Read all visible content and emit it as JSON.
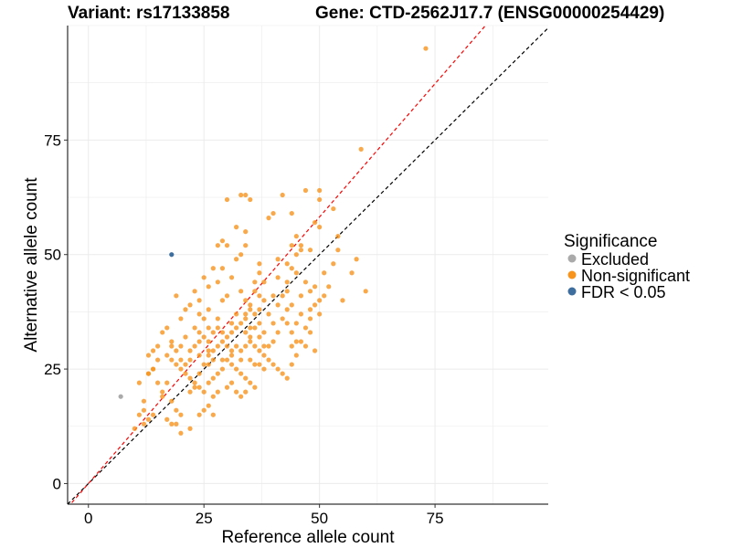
{
  "header": {
    "variant": "Variant: rs17133858",
    "gene": "Gene: CTD-2562J17.7 (ENSG00000254429)"
  },
  "colors": {
    "excluded": "#aaaaaa",
    "non_significant": "#f7941d",
    "fdr": "#3e6e9e",
    "diag_red": "#ff0000",
    "diag_black": "#000000",
    "grid": "#ebebeb"
  },
  "chart_data": {
    "type": "scatter",
    "xlabel": "Reference allele count",
    "ylabel": "Alternative allele count",
    "xlim": [
      -4.5,
      99.5
    ],
    "ylim": [
      -4.5,
      100
    ],
    "xticks": [
      0,
      25,
      50,
      75
    ],
    "yticks": [
      0,
      25,
      50,
      75
    ],
    "grid": true,
    "legend": {
      "title": "Significance",
      "position": "right",
      "entries": [
        "Excluded",
        "Non-significant",
        "FDR < 0.05"
      ]
    },
    "reference_lines": [
      {
        "color": "black",
        "style": "dashed",
        "slope": 1.0,
        "intercept": 0
      },
      {
        "color": "red",
        "style": "dashed",
        "slope": 1.164,
        "intercept": 0
      }
    ],
    "series": [
      {
        "name": "Excluded",
        "points": [
          [
            7,
            19
          ]
        ]
      },
      {
        "name": "FDR < 0.05",
        "points": [
          [
            18,
            50
          ]
        ]
      },
      {
        "name": "Non-significant",
        "points": [
          [
            73,
            95
          ],
          [
            59,
            73
          ],
          [
            60,
            42
          ],
          [
            57,
            46
          ],
          [
            58,
            49
          ],
          [
            55,
            40
          ],
          [
            54,
            54
          ],
          [
            53,
            60
          ],
          [
            50,
            64
          ],
          [
            47,
            64
          ],
          [
            50,
            62
          ],
          [
            42,
            63
          ],
          [
            33,
            63
          ],
          [
            34,
            63
          ],
          [
            30,
            62
          ],
          [
            35,
            62
          ],
          [
            40,
            59
          ],
          [
            39,
            58
          ],
          [
            44,
            59
          ],
          [
            32,
            56
          ],
          [
            50,
            56
          ],
          [
            49,
            57
          ],
          [
            54,
            51
          ],
          [
            53,
            48
          ],
          [
            48,
            51
          ],
          [
            51,
            46
          ],
          [
            45,
            46
          ],
          [
            44,
            47
          ],
          [
            37,
            48
          ],
          [
            34,
            52
          ],
          [
            29,
            53
          ],
          [
            34,
            55
          ],
          [
            30,
            52
          ],
          [
            28,
            52
          ],
          [
            33,
            50
          ],
          [
            32,
            49
          ],
          [
            27,
            47
          ],
          [
            29,
            47
          ],
          [
            37,
            46
          ],
          [
            41,
            45
          ],
          [
            43,
            44
          ],
          [
            47,
            44
          ],
          [
            49,
            43
          ],
          [
            50,
            40
          ],
          [
            50,
            37
          ],
          [
            48,
            33
          ],
          [
            44,
            30
          ],
          [
            45,
            35
          ],
          [
            43,
            38
          ],
          [
            42,
            41
          ],
          [
            43,
            42
          ],
          [
            38,
            44
          ],
          [
            36,
            44
          ],
          [
            31,
            45
          ],
          [
            28,
            44
          ],
          [
            25,
            45
          ],
          [
            26,
            43
          ],
          [
            23,
            42
          ],
          [
            19,
            41
          ],
          [
            22,
            39
          ],
          [
            20,
            36
          ],
          [
            24,
            37
          ],
          [
            26,
            38
          ],
          [
            29,
            40
          ],
          [
            30,
            41
          ],
          [
            33,
            42
          ],
          [
            34,
            40
          ],
          [
            35,
            39
          ],
          [
            37,
            38
          ],
          [
            39,
            37
          ],
          [
            36,
            37
          ],
          [
            32,
            37
          ],
          [
            34,
            36
          ],
          [
            31,
            35
          ],
          [
            28,
            36
          ],
          [
            26,
            34
          ],
          [
            25,
            36
          ],
          [
            23,
            34
          ],
          [
            21,
            32
          ],
          [
            24,
            31
          ],
          [
            22,
            29
          ],
          [
            20,
            30
          ],
          [
            18,
            31
          ],
          [
            17,
            28
          ],
          [
            15,
            27
          ],
          [
            14,
            25
          ],
          [
            13,
            24
          ],
          [
            15,
            22
          ],
          [
            16,
            20
          ],
          [
            18,
            18
          ],
          [
            19,
            16
          ],
          [
            20,
            15
          ],
          [
            17,
            14
          ],
          [
            14,
            15
          ],
          [
            13,
            14
          ],
          [
            12,
            13
          ],
          [
            11,
            15
          ],
          [
            11,
            22
          ],
          [
            13,
            24
          ],
          [
            14,
            25
          ],
          [
            18,
            27
          ],
          [
            19,
            26
          ],
          [
            20,
            25
          ],
          [
            21,
            24
          ],
          [
            22,
            23
          ],
          [
            23,
            22
          ],
          [
            24,
            21
          ],
          [
            25,
            20
          ],
          [
            26,
            22
          ],
          [
            27,
            23
          ],
          [
            28,
            24
          ],
          [
            29,
            25
          ],
          [
            30,
            27
          ],
          [
            31,
            26
          ],
          [
            32,
            25
          ],
          [
            33,
            24
          ],
          [
            34,
            23
          ],
          [
            35,
            22
          ],
          [
            36,
            21
          ],
          [
            34,
            20
          ],
          [
            33,
            19
          ],
          [
            32,
            20
          ],
          [
            31,
            22
          ],
          [
            30,
            21
          ],
          [
            28,
            20
          ],
          [
            27,
            19
          ],
          [
            26,
            17
          ],
          [
            25,
            16
          ],
          [
            24,
            15
          ],
          [
            22,
            12
          ],
          [
            20,
            11
          ],
          [
            19,
            13
          ],
          [
            18,
            13
          ],
          [
            27,
            15
          ],
          [
            24,
            24
          ],
          [
            25,
            26
          ],
          [
            26,
            28
          ],
          [
            27,
            29
          ],
          [
            28,
            30
          ],
          [
            29,
            31
          ],
          [
            30,
            32
          ],
          [
            31,
            33
          ],
          [
            32,
            34
          ],
          [
            33,
            35
          ],
          [
            34,
            33
          ],
          [
            35,
            32
          ],
          [
            36,
            30
          ],
          [
            37,
            29
          ],
          [
            38,
            28
          ],
          [
            39,
            27
          ],
          [
            40,
            26
          ],
          [
            41,
            25
          ],
          [
            42,
            24
          ],
          [
            43,
            23
          ],
          [
            44,
            26
          ],
          [
            45,
            28
          ],
          [
            46,
            31
          ],
          [
            47,
            34
          ],
          [
            48,
            36
          ],
          [
            49,
            29
          ],
          [
            47,
            30
          ],
          [
            45,
            31
          ],
          [
            41,
            33
          ],
          [
            40,
            35
          ],
          [
            39,
            30
          ],
          [
            38,
            33
          ],
          [
            37,
            35
          ],
          [
            36,
            34
          ],
          [
            35,
            31
          ],
          [
            34,
            30
          ],
          [
            33,
            29
          ],
          [
            32,
            30
          ],
          [
            31,
            29
          ],
          [
            30,
            30
          ],
          [
            29,
            33
          ],
          [
            28,
            34
          ],
          [
            27,
            33
          ],
          [
            26,
            31
          ],
          [
            25,
            32
          ],
          [
            24,
            33
          ],
          [
            23,
            30
          ],
          [
            22,
            27
          ],
          [
            21,
            26
          ],
          [
            20,
            27
          ],
          [
            19,
            29
          ],
          [
            18,
            30
          ],
          [
            17,
            34
          ],
          [
            16,
            33
          ],
          [
            15,
            30
          ],
          [
            14,
            29
          ],
          [
            13,
            28
          ],
          [
            12,
            18
          ],
          [
            10,
            12
          ],
          [
            12,
            16
          ],
          [
            16,
            19
          ],
          [
            17,
            22
          ],
          [
            22,
            20
          ],
          [
            23,
            21
          ],
          [
            26,
            26
          ],
          [
            27,
            27
          ],
          [
            36,
            26
          ],
          [
            37,
            26
          ],
          [
            38,
            25
          ],
          [
            35,
            27
          ],
          [
            43,
            35
          ],
          [
            44,
            39
          ],
          [
            46,
            41
          ],
          [
            48,
            42
          ],
          [
            43,
            48
          ],
          [
            45,
            50
          ],
          [
            46,
            52
          ],
          [
            44,
            52
          ],
          [
            45,
            54
          ],
          [
            46,
            51
          ],
          [
            41,
            49
          ],
          [
            38,
            40
          ],
          [
            37,
            41
          ],
          [
            36,
            42
          ],
          [
            35,
            38
          ],
          [
            34,
            37
          ],
          [
            41,
            39
          ],
          [
            42,
            36
          ],
          [
            44,
            33
          ],
          [
            40,
            31
          ],
          [
            38,
            30
          ],
          [
            37,
            32
          ],
          [
            35,
            34
          ],
          [
            40,
            41
          ],
          [
            24,
            40
          ],
          [
            21,
            38
          ],
          [
            24,
            28
          ],
          [
            26,
            29
          ],
          [
            29,
            27
          ],
          [
            31,
            28
          ],
          [
            33,
            27
          ],
          [
            46,
            37
          ],
          [
            48,
            38
          ],
          [
            49,
            39
          ],
          [
            51,
            41
          ],
          [
            52,
            43
          ]
        ]
      }
    ]
  }
}
